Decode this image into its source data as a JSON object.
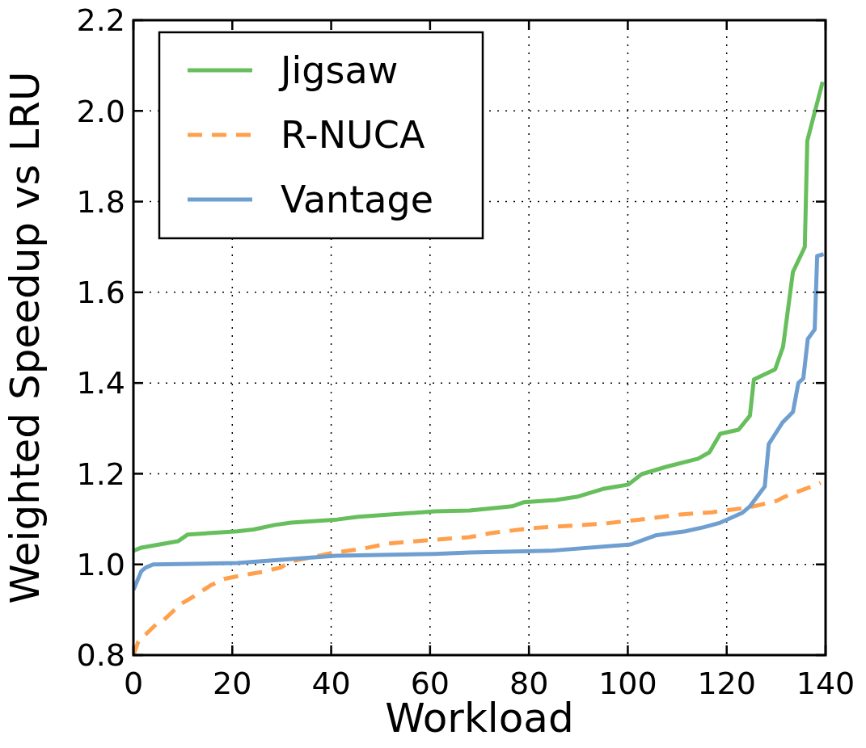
{
  "chart_data": {
    "type": "line",
    "xlabel": "Workload",
    "ylabel": "Weighted Speedup vs LRU",
    "xlim": [
      0,
      140
    ],
    "ylim": [
      0.8,
      2.2
    ],
    "xticks": [
      0,
      20,
      40,
      60,
      80,
      100,
      120,
      140
    ],
    "yticks": [
      {
        "value": 0.8,
        "label": "0.8"
      },
      {
        "value": 1.0,
        "label": "1.0"
      },
      {
        "value": 1.2,
        "label": "1.2"
      },
      {
        "value": 1.4,
        "label": "1.4"
      },
      {
        "value": 1.6,
        "label": "1.6"
      },
      {
        "value": 1.8,
        "label": "1.8"
      },
      {
        "value": 2.0,
        "label": "2.0"
      },
      {
        "value": 2.2,
        "label": "2.2"
      }
    ],
    "grid": true,
    "legend": "top left",
    "marker": "none",
    "series": [
      {
        "name": "Jigsaw",
        "color": "#66bf5c",
        "line_style": "solid",
        "x": [
          0,
          1.6,
          9,
          11,
          21,
          24.3,
          28.6,
          31.9,
          41.2,
          45.5,
          61,
          68,
          76.6,
          78.9,
          85.4,
          89.7,
          95.2,
          100.1,
          102.8,
          107.7,
          114.2,
          116.5,
          118.7,
          122.4,
          124.7,
          125.5,
          129.8,
          131.4,
          133.4,
          135.8,
          136.3,
          139.4
        ],
        "values": [
          1.03,
          1.037,
          1.051,
          1.066,
          1.073,
          1.077,
          1.087,
          1.092,
          1.099,
          1.105,
          1.117,
          1.119,
          1.128,
          1.137,
          1.142,
          1.149,
          1.167,
          1.176,
          1.199,
          1.215,
          1.233,
          1.247,
          1.288,
          1.297,
          1.328,
          1.408,
          1.43,
          1.48,
          1.645,
          1.7,
          1.934,
          2.064
        ]
      },
      {
        "name": "R-NUCA",
        "color": "#ffa04d",
        "line_style": "dashed",
        "x": [
          0,
          1,
          4.6,
          6.2,
          9.5,
          12.3,
          15.5,
          18.3,
          22,
          25.4,
          29.8,
          31.9,
          36.3,
          40,
          46.1,
          51.5,
          59.2,
          67.9,
          72.3,
          80.5,
          95.2,
          101.8,
          110.5,
          117,
          124.7,
          130.1,
          131.7,
          135.5,
          138.3,
          139
        ],
        "values": [
          0.8,
          0.83,
          0.868,
          0.878,
          0.912,
          0.93,
          0.953,
          0.968,
          0.976,
          0.982,
          0.993,
          1.007,
          1.016,
          1.025,
          1.034,
          1.046,
          1.053,
          1.06,
          1.069,
          1.08,
          1.09,
          1.098,
          1.11,
          1.115,
          1.126,
          1.14,
          1.149,
          1.165,
          1.176,
          1.18
        ]
      },
      {
        "name": "Vantage",
        "color": "#6f9fd0",
        "line_style": "solid",
        "x": [
          0,
          1.6,
          2.5,
          4,
          21,
          32,
          41,
          61,
          67.9,
          84.3,
          100.6,
          105.6,
          111.6,
          115.4,
          118.7,
          123.2,
          124.7,
          127.7,
          128.5,
          131.3,
          133.4,
          134.5,
          135.5,
          136.4,
          137.8,
          138.3,
          139.6
        ],
        "values": [
          0.944,
          0.985,
          0.993,
          1.0,
          1.003,
          1.012,
          1.019,
          1.023,
          1.026,
          1.03,
          1.044,
          1.064,
          1.073,
          1.082,
          1.092,
          1.114,
          1.128,
          1.172,
          1.265,
          1.313,
          1.336,
          1.4,
          1.41,
          1.497,
          1.518,
          1.68,
          1.684
        ]
      }
    ]
  }
}
